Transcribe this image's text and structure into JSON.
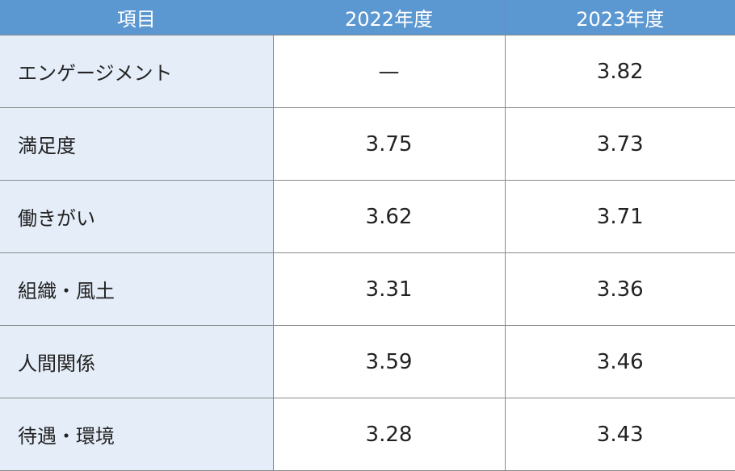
{
  "table": {
    "header": [
      "項目",
      "2022年度",
      "2023年度"
    ],
    "rows": [
      [
        "エンゲージメント",
        "—",
        "3.82"
      ],
      [
        "満足度",
        "3.75",
        "3.73"
      ],
      [
        "働きがい",
        "3.62",
        "3.71"
      ],
      [
        "組織・風土",
        "3.31",
        "3.36"
      ],
      [
        "人間関係",
        "3.59",
        "3.46"
      ],
      [
        "待遇・環境",
        "3.28",
        "3.43"
      ]
    ]
  }
}
